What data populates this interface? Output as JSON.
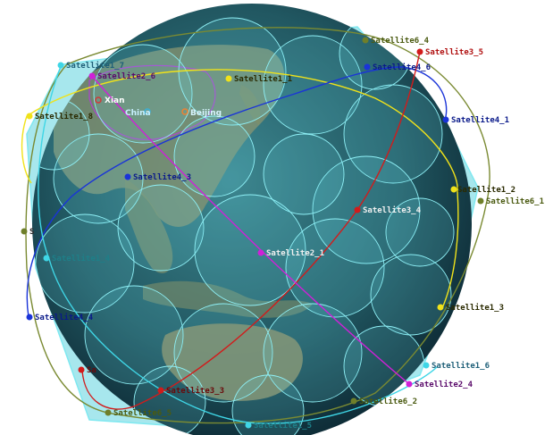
{
  "scene": {
    "colors": {
      "ocean_dark": "#0f2f3a",
      "ocean_mid": "#2f6c74",
      "coverage_fill": "#5fd3df",
      "coverage_stroke": "#7fe8f0",
      "orbit_yellow": "#f0e21a",
      "orbit_blue": "#1a34d8",
      "orbit_red": "#d21b1b",
      "orbit_magenta": "#d020d8",
      "orbit_olive": "#7a8a32",
      "orbit_cyan": "#3fd6e6",
      "land": "#7f8f6a"
    },
    "cities": [
      {
        "name": "Xian",
        "color": "#d23a3a"
      },
      {
        "name": "China",
        "color": "#3ab0d8"
      },
      {
        "name": "Beijing",
        "color": "#f08030"
      }
    ],
    "satellites": [
      {
        "label": "Satellite1_1",
        "color": "#f0e21a",
        "text_color": "#2a2a00"
      },
      {
        "label": "Satellite1_2",
        "color": "#f0e21a",
        "text_color": "#2a2a00"
      },
      {
        "label": "Satellite1_3",
        "color": "#f0e21a",
        "text_color": "#2a2a00"
      },
      {
        "label": "Satellite1_4",
        "color": "#3fd6e6",
        "text_color": "#1e7f88"
      },
      {
        "label": "Satellite1_5",
        "color": "#3fd6e6",
        "text_color": "#1e7f88"
      },
      {
        "label": "Satellite1_6",
        "color": "#3fd6e6",
        "text_color": "#1e5f78"
      },
      {
        "label": "Satellite1_7",
        "color": "#3fd6e6",
        "text_color": "#1e5f78"
      },
      {
        "label": "Satellite1_8",
        "color": "#f0e21a",
        "text_color": "#2a2a00"
      },
      {
        "label": "Satellite2_1",
        "color": "#d020d8",
        "text_color": "#f0f0f0"
      },
      {
        "label": "Satellite2_4",
        "color": "#d020d8",
        "text_color": "#5a0a6a"
      },
      {
        "label": "Satellite2_6",
        "color": "#d020d8",
        "text_color": "#5a0a6a"
      },
      {
        "label": "Satellite3_3",
        "color": "#d21b1b",
        "text_color": "#6a0a0a"
      },
      {
        "label": "Satellite3_4",
        "color": "#d21b1b",
        "text_color": "#f0f0f0"
      },
      {
        "label": "Satellite3_5",
        "color": "#d21b1b",
        "text_color": "#b01010"
      },
      {
        "label": "Satellite4_1",
        "color": "#1a34d8",
        "text_color": "#0a1a8a"
      },
      {
        "label": "Satellite4_3",
        "color": "#1a34d8",
        "text_color": "#0a1a8a"
      },
      {
        "label": "Satellite4_4",
        "color": "#1a34d8",
        "text_color": "#0a1a8a"
      },
      {
        "label": "Satellite4_6",
        "color": "#1a34d8",
        "text_color": "#0a1a8a"
      },
      {
        "label": "Satellite6_1",
        "color": "#6f7f2a",
        "text_color": "#4a5a10"
      },
      {
        "label": "Satellite6_2",
        "color": "#6f7f2a",
        "text_color": "#4a5a10"
      },
      {
        "label": "Satellite6_4",
        "color": "#6f7f2a",
        "text_color": "#4a5a10"
      },
      {
        "label": "Satellite6_5",
        "color": "#6f7f2a",
        "text_color": "#4a5a10"
      },
      {
        "label": "Sa",
        "color": "#d21b1b",
        "text_color": "#6a0a0a"
      },
      {
        "label": "S",
        "color": "#6f7f2a",
        "text_color": "#2a2a2a"
      }
    ]
  }
}
